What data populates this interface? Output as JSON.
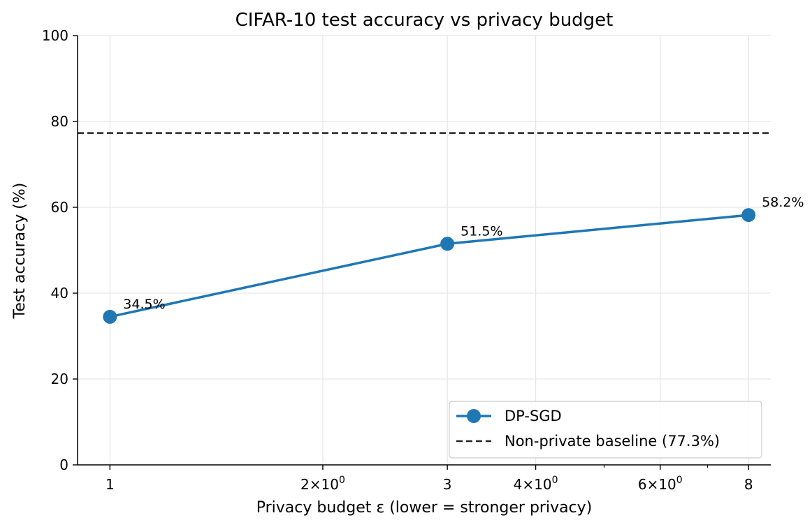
{
  "chart_data": {
    "type": "line",
    "title": "CIFAR-10 test accuracy vs privacy budget",
    "xlabel": "Privacy budget ε (lower = stronger privacy)",
    "ylabel": "Test accuracy (%)",
    "xscale": "log",
    "xlim": [
      0.9,
      8.6
    ],
    "ylim": [
      0,
      100
    ],
    "grid": true,
    "x_ticks": [
      {
        "value": 1,
        "label": "1"
      },
      {
        "value": 2,
        "label": "2×10^0"
      },
      {
        "value": 3,
        "label": "3"
      },
      {
        "value": 4,
        "label": "4×10^0"
      },
      {
        "value": 6,
        "label": "6×10^0"
      },
      {
        "value": 8,
        "label": "8"
      }
    ],
    "x_minor_ticks": [
      5,
      7
    ],
    "y_ticks": [
      0,
      20,
      40,
      60,
      80,
      100
    ],
    "series": [
      {
        "name": "DP-SGD",
        "x": [
          1,
          3,
          8
        ],
        "y": [
          34.5,
          51.5,
          58.2
        ],
        "labels": [
          "34.5%",
          "51.5%",
          "58.2%"
        ],
        "color": "#1f77b4"
      }
    ],
    "baseline": {
      "name": "Non-private baseline (77.3%)",
      "value": 77.3,
      "color": "#222222",
      "style": "dashed"
    },
    "legend_position": "lower-right"
  }
}
